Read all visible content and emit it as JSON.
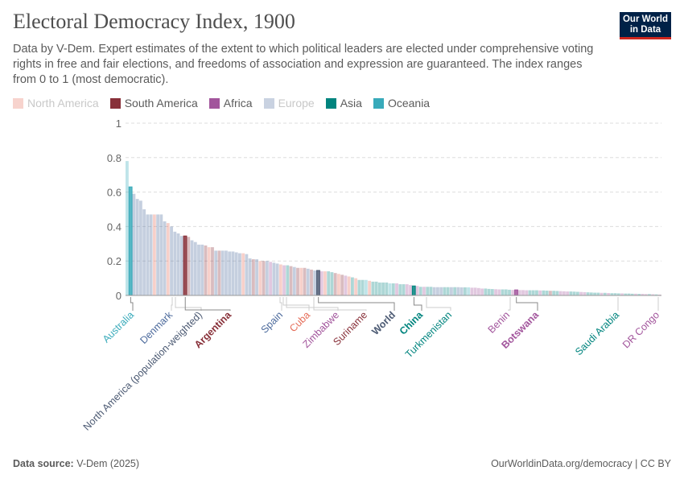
{
  "header": {
    "title": "Electoral Democracy Index, 1900",
    "subtitle": "Data by V-Dem. Expert estimates of the extent to which political leaders are elected under comprehensive voting rights in free and fair elections, and freedoms of association and expression are guaranteed. The index ranges from 0 to 1 (most democratic).",
    "logo": "Our World in Data"
  },
  "footer": {
    "source_label": "Data source:",
    "source": "V-Dem (2025)",
    "link": "OurWorldinData.org/democracy | CC BY"
  },
  "chart_data": {
    "type": "bar",
    "ylim": [
      0,
      1
    ],
    "yticks": [
      "0",
      "0.2",
      "0.4",
      "0.6",
      "0.8",
      "1"
    ],
    "grid": true,
    "legend_placement": "top-left",
    "legend": [
      {
        "code": "NA",
        "name": "North America",
        "color": "#e56e5a",
        "dimmed": true
      },
      {
        "code": "SA",
        "name": "South America",
        "color": "#883039",
        "dimmed": false
      },
      {
        "code": "AF",
        "name": "Africa",
        "color": "#a2559c",
        "dimmed": false
      },
      {
        "code": "EU",
        "name": "Europe",
        "color": "#4c6a9c",
        "dimmed": true
      },
      {
        "code": "AS",
        "name": "Asia",
        "color": "#00847e",
        "dimmed": false
      },
      {
        "code": "OC",
        "name": "Oceania",
        "color": "#38aaba",
        "dimmed": false
      }
    ],
    "world_color": "#4c5a73",
    "bars": [
      [
        "OC",
        0.78
      ],
      [
        "OC",
        0.63,
        "Australia"
      ],
      [
        "EU",
        0.59
      ],
      [
        "EU",
        0.56
      ],
      [
        "EU",
        0.55
      ],
      [
        "EU",
        0.5
      ],
      [
        "EU",
        0.47
      ],
      [
        "EU",
        0.47
      ],
      [
        "NA",
        0.47
      ],
      [
        "EU",
        0.47
      ],
      [
        "EU",
        0.47
      ],
      [
        "EU",
        0.43
      ],
      [
        "NA",
        0.42
      ],
      [
        "EU",
        0.4
      ],
      [
        "EU",
        0.37
      ],
      [
        "EU",
        0.36
      ],
      [
        "EU",
        0.345
      ],
      [
        "SA",
        0.345,
        "Argentina"
      ],
      [
        "SA",
        0.34
      ],
      [
        "EU",
        0.32
      ],
      [
        "EU",
        0.31
      ],
      [
        "EU",
        0.295
      ],
      [
        "EU",
        0.295
      ],
      [
        "SA",
        0.29
      ],
      [
        "NA",
        0.28
      ],
      [
        "SA",
        0.28
      ],
      [
        "EU",
        0.26
      ],
      [
        "SA",
        0.26
      ],
      [
        "EU",
        0.26
      ],
      [
        "EU",
        0.26
      ],
      [
        "EU",
        0.255
      ],
      [
        "EU",
        0.255
      ],
      [
        "EU",
        0.25
      ],
      [
        "EU",
        0.245
      ],
      [
        "NA",
        0.245
      ],
      [
        "EU",
        0.24
      ],
      [
        "EU",
        0.215
      ],
      [
        "SA",
        0.21
      ],
      [
        "EU",
        0.21
      ],
      [
        "NA",
        0.2
      ],
      [
        "SA",
        0.2
      ],
      [
        "EU",
        0.2
      ],
      [
        "AF",
        0.195
      ],
      [
        "EU",
        0.19
      ],
      [
        "EU",
        0.185
      ],
      [
        "NA",
        0.18
      ],
      [
        "AF",
        0.175
      ],
      [
        "AS",
        0.175
      ],
      [
        "SA",
        0.17
      ],
      [
        "EU",
        0.165
      ],
      [
        "SA",
        0.16
      ],
      [
        "NA",
        0.16
      ],
      [
        "SA",
        0.16
      ],
      [
        "EU",
        0.155
      ],
      [
        "SA",
        0.15
      ],
      [
        "EU",
        0.145
      ],
      [
        "WD",
        0.145,
        "World"
      ],
      [
        "AF",
        0.14
      ],
      [
        "NA",
        0.14
      ],
      [
        "AS",
        0.14
      ],
      [
        "AS",
        0.135
      ],
      [
        "SA",
        0.13
      ],
      [
        "NA",
        0.125
      ],
      [
        "SA",
        0.12
      ],
      [
        "AF",
        0.115
      ],
      [
        "NA",
        0.11
      ],
      [
        "AS",
        0.105
      ],
      [
        "NA",
        0.1
      ],
      [
        "AS",
        0.09
      ],
      [
        "AS",
        0.09
      ],
      [
        "OC",
        0.09
      ],
      [
        "NA",
        0.085
      ],
      [
        "AS",
        0.08
      ],
      [
        "AS",
        0.08
      ],
      [
        "AS",
        0.075
      ],
      [
        "AS",
        0.075
      ],
      [
        "AS",
        0.075
      ],
      [
        "OC",
        0.07
      ],
      [
        "AS",
        0.07
      ],
      [
        "AF",
        0.07
      ],
      [
        "AS",
        0.065
      ],
      [
        "AS",
        0.065
      ],
      [
        "AF",
        0.065
      ],
      [
        "AF",
        0.06
      ],
      [
        "AS",
        0.055,
        "China"
      ],
      [
        "AF",
        0.055
      ],
      [
        "AS",
        0.05
      ],
      [
        "AF",
        0.05
      ],
      [
        "AS",
        0.05
      ],
      [
        "AS",
        0.05
      ],
      [
        "EU",
        0.048
      ],
      [
        "EU",
        0.048
      ],
      [
        "EU",
        0.048
      ],
      [
        "AS",
        0.048
      ],
      [
        "AS",
        0.048
      ],
      [
        "EU",
        0.048
      ],
      [
        "AS",
        0.048
      ],
      [
        "EU",
        0.048
      ],
      [
        "EU",
        0.047
      ],
      [
        "AS",
        0.047
      ],
      [
        "OC",
        0.047
      ],
      [
        "AF",
        0.045
      ],
      [
        "AF",
        0.045
      ],
      [
        "AF",
        0.043
      ],
      [
        "AF",
        0.04
      ],
      [
        "AS",
        0.04
      ],
      [
        "AS",
        0.038
      ],
      [
        "AS",
        0.037
      ],
      [
        "AF",
        0.036
      ],
      [
        "AF",
        0.035
      ],
      [
        "AS",
        0.035
      ],
      [
        "AS",
        0.035
      ],
      [
        "AS",
        0.033
      ],
      [
        "AF",
        0.032
      ],
      [
        "AF",
        0.032,
        "Botswana"
      ],
      [
        "AF",
        0.031
      ],
      [
        "AF",
        0.031
      ],
      [
        "AF",
        0.03
      ],
      [
        "AS",
        0.03
      ],
      [
        "AS",
        0.03
      ],
      [
        "AS",
        0.03
      ],
      [
        "AF",
        0.029
      ],
      [
        "AS",
        0.029
      ],
      [
        "AS",
        0.028
      ],
      [
        "SA",
        0.027
      ],
      [
        "AS",
        0.027
      ],
      [
        "AS",
        0.026
      ],
      [
        "AF",
        0.025
      ],
      [
        "AF",
        0.024
      ],
      [
        "AF",
        0.023
      ],
      [
        "AS",
        0.023
      ],
      [
        "AS",
        0.022
      ],
      [
        "AS",
        0.021
      ],
      [
        "AF",
        0.02
      ],
      [
        "AF",
        0.019
      ],
      [
        "AS",
        0.018
      ],
      [
        "AS",
        0.017
      ],
      [
        "AS",
        0.016
      ],
      [
        "AS",
        0.016
      ],
      [
        "AF",
        0.015
      ],
      [
        "AS",
        0.015
      ],
      [
        "AF",
        0.014
      ],
      [
        "AS",
        0.013
      ],
      [
        "AS",
        0.013
      ],
      [
        "AS",
        0.012
      ],
      [
        "AF",
        0.012
      ],
      [
        "AS",
        0.011
      ],
      [
        "AS",
        0.011
      ],
      [
        "AS",
        0.01
      ],
      [
        "AF",
        0.01
      ],
      [
        "AS",
        0.009
      ],
      [
        "AF",
        0.009
      ],
      [
        "AF",
        0.008
      ],
      [
        "AS",
        0.008
      ],
      [
        "AF",
        0.007
      ],
      [
        "AS",
        0.006
      ],
      [
        "AF",
        0.005
      ]
    ],
    "labels": [
      {
        "text": "Australia",
        "region": "OC",
        "bold": false
      },
      {
        "text": "Denmark",
        "region": "EU",
        "bold": false
      },
      {
        "text": "North America (population-weighted)",
        "region": "WD",
        "bold": false
      },
      {
        "text": "Argentina",
        "region": "SA",
        "bold": true
      },
      {
        "text": "Spain",
        "region": "EU",
        "bold": false
      },
      {
        "text": "Cuba",
        "region": "NA",
        "bold": false
      },
      {
        "text": "Zimbabwe",
        "region": "AF",
        "bold": false
      },
      {
        "text": "Suriname",
        "region": "SA",
        "bold": false
      },
      {
        "text": "World",
        "region": "WD",
        "bold": true
      },
      {
        "text": "China",
        "region": "AS",
        "bold": true
      },
      {
        "text": "Turkmenistan",
        "region": "AS",
        "bold": false
      },
      {
        "text": "Benin",
        "region": "AF",
        "bold": false
      },
      {
        "text": "Botswana",
        "region": "AF",
        "bold": true
      },
      {
        "text": "Saudi Arabia",
        "region": "AS",
        "bold": false
      },
      {
        "text": "DR Congo",
        "region": "AF",
        "bold": false
      }
    ]
  }
}
